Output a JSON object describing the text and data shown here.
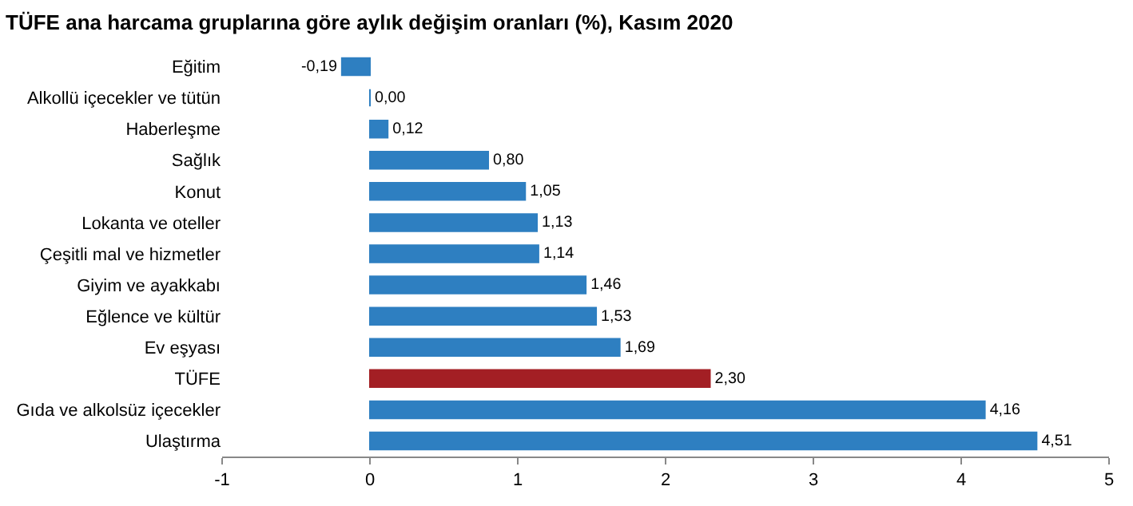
{
  "chart_data": {
    "type": "bar",
    "orientation": "horizontal",
    "title": "TÜFE ana harcama gruplarına göre aylık değişim oranları (%), Kasım 2020",
    "categories": [
      "Eğitim",
      "Alkollü içecekler ve tütün",
      "Haberleşme",
      "Sağlık",
      "Konut",
      "Lokanta ve oteller",
      "Çeşitli mal ve hizmetler",
      "Giyim ve ayakkabı",
      "Eğlence ve kültür",
      "Ev eşyası",
      "TÜFE",
      "Gıda ve alkolsüz içecekler",
      "Ulaştırma"
    ],
    "values": [
      -0.19,
      0.0,
      0.12,
      0.8,
      1.05,
      1.13,
      1.14,
      1.46,
      1.53,
      1.69,
      2.3,
      4.16,
      4.51
    ],
    "value_labels": [
      "-0,19",
      "0,00",
      "0,12",
      "0,80",
      "1,05",
      "1,13",
      "1,14",
      "1,46",
      "1,53",
      "1,69",
      "2,30",
      "4,16",
      "4,51"
    ],
    "colors": [
      "#2e7fc1",
      "#2e7fc1",
      "#2e7fc1",
      "#2e7fc1",
      "#2e7fc1",
      "#2e7fc1",
      "#2e7fc1",
      "#2e7fc1",
      "#2e7fc1",
      "#2e7fc1",
      "#a31f24",
      "#2e7fc1",
      "#2e7fc1"
    ],
    "xlim": [
      -1,
      5
    ],
    "xticks": [
      -1,
      0,
      1,
      2,
      3,
      4,
      5
    ],
    "grid": false,
    "legend": false
  }
}
